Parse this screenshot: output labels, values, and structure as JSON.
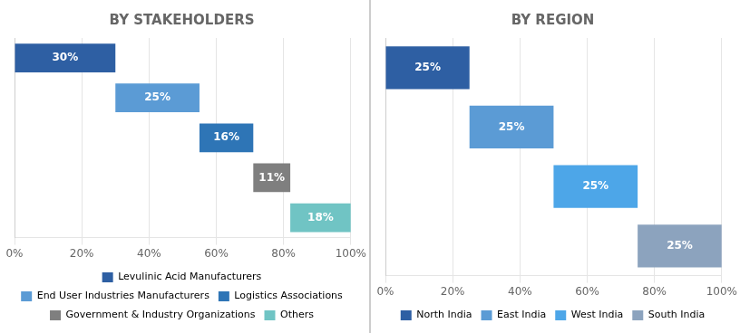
{
  "chart_data": [
    {
      "type": "bar",
      "title": "BY STAKEHOLDERS",
      "orientation": "horizontal",
      "stacked": true,
      "categories": [
        "Levulinic Acid Manufacturers",
        "End User Industries Manufacturers",
        "Logistics Associations",
        "Government & Industry Organizations",
        "Others"
      ],
      "values": [
        30,
        25,
        16,
        11,
        18
      ],
      "value_labels": [
        "30%",
        "25%",
        "16%",
        "11%",
        "18%"
      ],
      "colors": [
        "#2e5fa3",
        "#5b9bd5",
        "#2e75b6",
        "#7f7f7f",
        "#70c4c4"
      ],
      "data_labels": true,
      "xlim": [
        0,
        100
      ],
      "xticks": [
        {
          "value": 0,
          "label": "0%"
        },
        {
          "value": 20,
          "label": "20%"
        },
        {
          "value": 40,
          "label": "40%"
        },
        {
          "value": 60,
          "label": "60%"
        },
        {
          "value": 80,
          "label": "80%"
        },
        {
          "value": 100,
          "label": "100%"
        }
      ],
      "grid": true,
      "tick_labels": "x",
      "legend": "bottom"
    },
    {
      "type": "bar",
      "title": "BY REGION",
      "orientation": "horizontal",
      "stacked": true,
      "categories": [
        "North India",
        "East India",
        "West India",
        "South India"
      ],
      "values": [
        25,
        25,
        25,
        25
      ],
      "value_labels": [
        "25%",
        "25%",
        "25%",
        "25%"
      ],
      "colors": [
        "#2e5fa3",
        "#5b9bd5",
        "#4da6e8",
        "#8ca3be"
      ],
      "data_labels": true,
      "xlim": [
        0,
        100
      ],
      "xticks": [
        {
          "value": 0,
          "label": "0%"
        },
        {
          "value": 20,
          "label": "20%"
        },
        {
          "value": 40,
          "label": "40%"
        },
        {
          "value": 60,
          "label": "60%"
        },
        {
          "value": 80,
          "label": "80%"
        },
        {
          "value": 100,
          "label": "100%"
        }
      ],
      "grid": true,
      "tick_labels": "x",
      "legend": "bottom"
    }
  ]
}
